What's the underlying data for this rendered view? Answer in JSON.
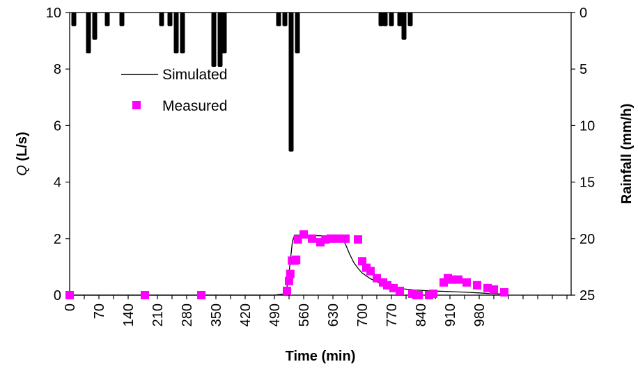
{
  "chart_data": {
    "type": "line",
    "x_axis": {
      "label": "Time (min)",
      "range": [
        0,
        1200
      ],
      "ticks": [
        "0",
        "70",
        "140",
        "210",
        "280",
        "350",
        "420",
        "490",
        "560",
        "630",
        "700",
        "770",
        "840",
        "910",
        "980"
      ]
    },
    "y_axis_left": {
      "label_prefix": "Q",
      "label_suffix": " (L/s)",
      "range": [
        0,
        10
      ],
      "ticks": [
        "0",
        "2",
        "4",
        "6",
        "8",
        "10"
      ]
    },
    "y_axis_right": {
      "label": "Rainfall (mm/h)",
      "range": [
        0,
        25
      ],
      "inverted": true,
      "ticks": [
        "0",
        "5",
        "10",
        "15",
        "20",
        "25"
      ]
    },
    "legend": {
      "placement": "upper-left"
    },
    "series": [
      {
        "name": "Simulated",
        "kind": "line",
        "color": "#000000",
        "x": [
          0,
          490,
          515,
          522,
          528,
          533,
          538,
          545,
          560,
          600,
          650,
          660,
          670,
          680,
          690,
          700,
          720,
          740,
          760,
          780,
          800,
          820,
          840,
          860,
          880,
          900,
          920,
          950,
          980,
          1000,
          1020,
          1050
        ],
        "y": [
          0,
          0,
          0.05,
          0.4,
          1.2,
          1.9,
          2.12,
          2.12,
          2.12,
          2.1,
          2.08,
          1.8,
          1.45,
          1.15,
          0.95,
          0.78,
          0.58,
          0.44,
          0.34,
          0.27,
          0.22,
          0.19,
          0.17,
          0.15,
          0.14,
          0.13,
          0.12,
          0.1,
          0.08,
          0.06,
          0.05,
          0.04
        ]
      },
      {
        "name": "Measured",
        "kind": "scatter",
        "color": "#ff00ff",
        "x": [
          0,
          180,
          315,
          520,
          525,
          528,
          532,
          538,
          542,
          546,
          560,
          580,
          600,
          612,
          625,
          640,
          660,
          690,
          700,
          710,
          720,
          735,
          750,
          760,
          775,
          790,
          820,
          830,
          835,
          860,
          870,
          895,
          905,
          915,
          930,
          950,
          975,
          1000,
          1015,
          1040
        ],
        "y": [
          0,
          0,
          0,
          0.15,
          0.5,
          0.75,
          1.22,
          1.22,
          1.25,
          1.97,
          2.15,
          2.0,
          1.87,
          1.97,
          2.0,
          2.0,
          2.0,
          1.97,
          1.2,
          0.97,
          0.85,
          0.6,
          0.45,
          0.35,
          0.25,
          0.15,
          0.05,
          0.0,
          0.0,
          0.0,
          0.05,
          0.45,
          0.6,
          0.55,
          0.55,
          0.45,
          0.35,
          0.25,
          0.2,
          0.1
        ]
      },
      {
        "name": "Rainfall",
        "kind": "bar-inverted",
        "axis": "right",
        "color": "#000000",
        "bars": [
          [
            10,
            1.2
          ],
          [
            45,
            3.6
          ],
          [
            60,
            2.4
          ],
          [
            90,
            1.2
          ],
          [
            125,
            1.2
          ],
          [
            220,
            1.2
          ],
          [
            240,
            1.2
          ],
          [
            255,
            3.6
          ],
          [
            270,
            3.6
          ],
          [
            345,
            4.8
          ],
          [
            360,
            4.8
          ],
          [
            370,
            3.6
          ],
          [
            500,
            1.2
          ],
          [
            515,
            1.2
          ],
          [
            530,
            12.3
          ],
          [
            545,
            3.6
          ],
          [
            745,
            1.2
          ],
          [
            755,
            1.2
          ],
          [
            770,
            1.2
          ],
          [
            790,
            1.2
          ],
          [
            800,
            2.4
          ],
          [
            815,
            1.2
          ]
        ]
      }
    ]
  }
}
